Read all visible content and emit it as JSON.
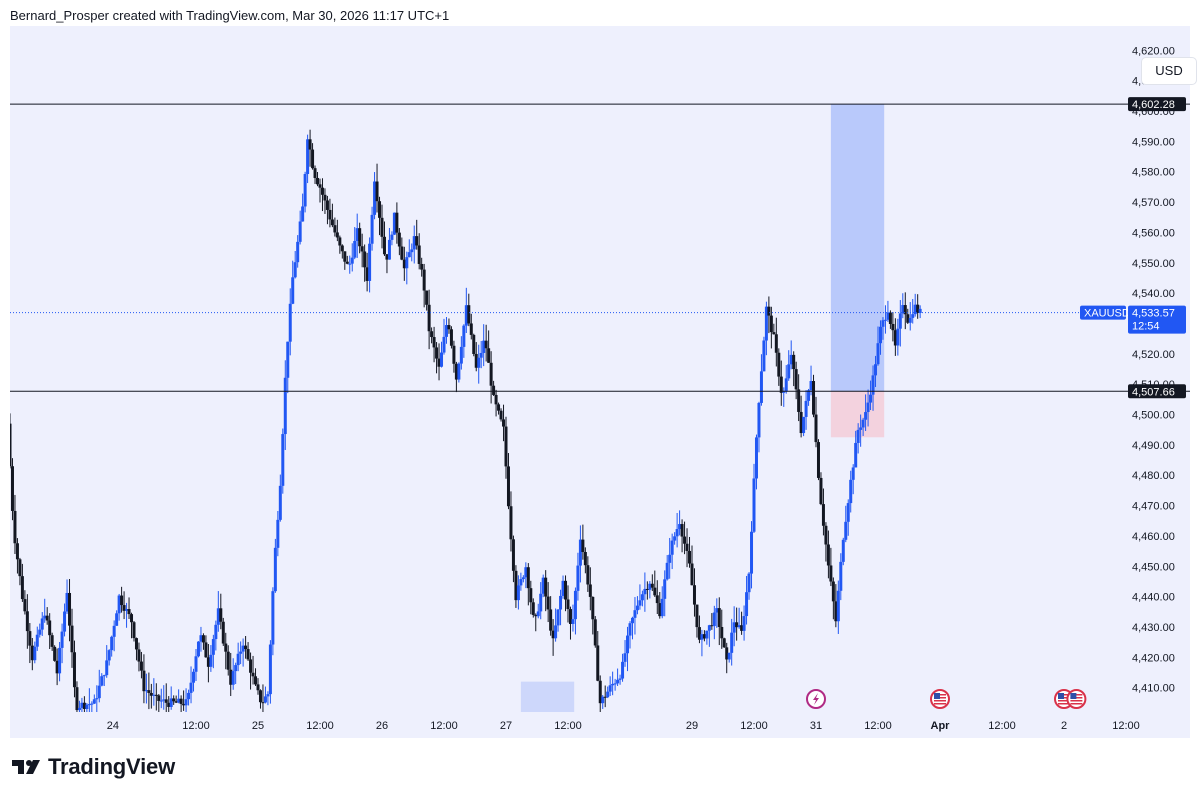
{
  "header": {
    "title": "Bernard_Prosper created with TradingView.com, Mar 30, 2026 11:17 UTC+1"
  },
  "toolbar": {
    "currency_label": "USD"
  },
  "footer": {
    "brand_label": "TradingView"
  },
  "colors": {
    "background": "#eef0fd",
    "bull": "#2157f3",
    "bear": "#131722",
    "target_zone": "#b9c9fb",
    "stop_zone": "#f3d2de",
    "demand_zone": "#cdd7fb",
    "price_tag": "#2157f3",
    "level_tag": "#131722"
  },
  "chart_data": {
    "type": "candlestick",
    "symbol": "XAUUSD",
    "ylim": [
      4402,
      4628
    ],
    "y_ticks": [
      4410,
      4420,
      4430,
      4440,
      4450,
      4460,
      4470,
      4480,
      4490,
      4500,
      4510,
      4520,
      4530,
      4540,
      4550,
      4560,
      4570,
      4580,
      4590,
      4600,
      4610,
      4620
    ],
    "y_tick_labels": [
      "4,410.00",
      "4,420.00",
      "4,430.00",
      "4,440.00",
      "4,450.00",
      "4,460.00",
      "4,470.00",
      "4,480.00",
      "4,490.00",
      "4,500.00",
      "4,510.00",
      "4,520.00",
      "4,530.00",
      "4,540.00",
      "4,550.00",
      "4,560.00",
      "4,570.00",
      "4,580.00",
      "4,590.00",
      "4,600.00",
      "4,610.00",
      "4,620.00"
    ],
    "x_ticks": [
      "24",
      "12:00",
      "25",
      "12:00",
      "26",
      "12:00",
      "27",
      "12:00",
      "29",
      "12:00",
      "31",
      "12:00",
      "Apr",
      "12:00",
      "2",
      "12:00"
    ],
    "x_tick_bold": [
      false,
      false,
      false,
      false,
      false,
      false,
      false,
      false,
      false,
      false,
      false,
      false,
      true,
      false,
      false,
      false
    ],
    "current_price": {
      "label": "XAUUSD",
      "value": "4,533.57",
      "countdown": "12:54",
      "price": 4533.57
    },
    "horizontal_lines": [
      {
        "price": 4602.28,
        "label": "4,602.28"
      },
      {
        "price": 4507.66,
        "label": "4,507.66"
      }
    ],
    "position_tool": {
      "entry": 4507.66,
      "target": 4602.28,
      "stop": 4492.5,
      "start_time": 29.62,
      "end_time": 30.05
    },
    "demand_zone": {
      "low": 4402,
      "high": 4412,
      "start_time": 27.12,
      "end_time": 27.55
    },
    "events": [
      {
        "icon": "lightning-event-icon",
        "time": 29.5
      },
      {
        "icon": "us-flag-event-icon",
        "time": 30.5
      },
      {
        "icon": "us-flag-event-icon",
        "time": 31.5
      },
      {
        "icon": "us-flag-event-icon",
        "time": 31.6
      }
    ],
    "xlim": [
      23.0,
      32.0
    ],
    "tick_times": [
      23.83,
      24.5,
      25.0,
      25.5,
      26.0,
      26.5,
      27.0,
      27.5,
      28.5,
      29.0,
      29.5,
      30.0,
      30.5,
      31.0,
      31.5,
      32.0
    ],
    "waypoints": [
      [
        23.0,
        4497
      ],
      [
        23.05,
        4462
      ],
      [
        23.12,
        4440
      ],
      [
        23.2,
        4420
      ],
      [
        23.3,
        4435
      ],
      [
        23.4,
        4415
      ],
      [
        23.48,
        4442
      ],
      [
        23.55,
        4404
      ],
      [
        23.7,
        4405
      ],
      [
        23.8,
        4418
      ],
      [
        23.9,
        4440
      ],
      [
        24.0,
        4432
      ],
      [
        24.1,
        4410
      ],
      [
        24.2,
        4406
      ],
      [
        24.3,
        4405
      ],
      [
        24.45,
        4405
      ],
      [
        24.55,
        4428
      ],
      [
        24.62,
        4418
      ],
      [
        24.7,
        4435
      ],
      [
        24.8,
        4412
      ],
      [
        24.9,
        4425
      ],
      [
        25.0,
        4410
      ],
      [
        25.05,
        4405
      ],
      [
        25.1,
        4408
      ],
      [
        25.15,
        4450
      ],
      [
        25.2,
        4478
      ],
      [
        25.25,
        4520
      ],
      [
        25.3,
        4545
      ],
      [
        25.38,
        4568
      ],
      [
        25.42,
        4592
      ],
      [
        25.47,
        4580
      ],
      [
        25.52,
        4575
      ],
      [
        25.6,
        4565
      ],
      [
        25.68,
        4555
      ],
      [
        25.75,
        4548
      ],
      [
        25.82,
        4560
      ],
      [
        25.9,
        4545
      ],
      [
        25.96,
        4578
      ],
      [
        26.05,
        4550
      ],
      [
        26.12,
        4565
      ],
      [
        26.2,
        4548
      ],
      [
        26.28,
        4558
      ],
      [
        26.35,
        4545
      ],
      [
        26.4,
        4528
      ],
      [
        26.48,
        4515
      ],
      [
        26.55,
        4532
      ],
      [
        26.62,
        4512
      ],
      [
        26.7,
        4535
      ],
      [
        26.78,
        4515
      ],
      [
        26.85,
        4525
      ],
      [
        26.92,
        4505
      ],
      [
        27.0,
        4495
      ],
      [
        27.05,
        4465
      ],
      [
        27.1,
        4440
      ],
      [
        27.18,
        4450
      ],
      [
        27.25,
        4430
      ],
      [
        27.32,
        4445
      ],
      [
        27.4,
        4425
      ],
      [
        27.48,
        4445
      ],
      [
        27.55,
        4428
      ],
      [
        27.62,
        4460
      ],
      [
        27.7,
        4440
      ],
      [
        27.78,
        4405
      ],
      [
        27.86,
        4410
      ],
      [
        27.95,
        4415
      ],
      [
        28.02,
        4430
      ],
      [
        28.1,
        4440
      ],
      [
        28.18,
        4445
      ],
      [
        28.26,
        4435
      ],
      [
        28.34,
        4455
      ],
      [
        28.42,
        4465
      ],
      [
        28.5,
        4450
      ],
      [
        28.58,
        4425
      ],
      [
        28.66,
        4430
      ],
      [
        28.72,
        4435
      ],
      [
        28.8,
        4418
      ],
      [
        28.86,
        4432
      ],
      [
        28.92,
        4428
      ],
      [
        28.98,
        4448
      ],
      [
        29.05,
        4500
      ],
      [
        29.12,
        4535
      ],
      [
        29.18,
        4525
      ],
      [
        29.25,
        4505
      ],
      [
        29.32,
        4520
      ],
      [
        29.4,
        4495
      ],
      [
        29.48,
        4512
      ],
      [
        29.55,
        4475
      ],
      [
        29.62,
        4450
      ],
      [
        29.68,
        4432
      ],
      [
        29.74,
        4460
      ],
      [
        29.8,
        4478
      ],
      [
        29.86,
        4495
      ],
      [
        29.92,
        4500
      ],
      [
        29.98,
        4512
      ],
      [
        30.04,
        4528
      ],
      [
        30.1,
        4535
      ],
      [
        30.16,
        4522
      ],
      [
        30.22,
        4537
      ],
      [
        30.27,
        4530
      ],
      [
        30.31,
        4536
      ],
      [
        30.35,
        4533.57
      ]
    ]
  }
}
